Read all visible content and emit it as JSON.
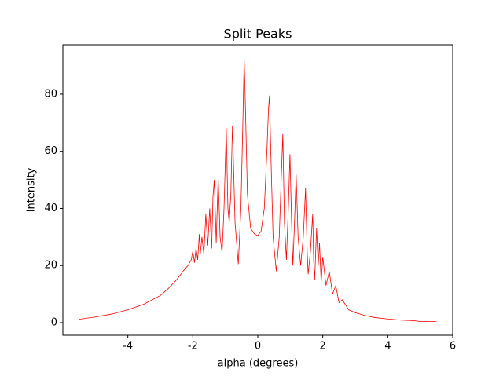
{
  "chart_data": {
    "type": "line",
    "title": "Split Peaks",
    "xlabel": "alpha (degrees)",
    "ylabel": "Intensity",
    "x": [
      -5.5,
      -5.0,
      -4.5,
      -4.0,
      -3.5,
      -3.0,
      -2.75,
      -2.5,
      -2.3,
      -2.15,
      -2.05,
      -2.0,
      -1.95,
      -1.9,
      -1.85,
      -1.8,
      -1.77,
      -1.72,
      -1.66,
      -1.6,
      -1.54,
      -1.48,
      -1.42,
      -1.38,
      -1.34,
      -1.28,
      -1.22,
      -1.16,
      -1.1,
      -1.04,
      -0.97,
      -0.92,
      -0.88,
      -0.83,
      -0.78,
      -0.7,
      -0.6,
      -0.52,
      -0.46,
      -0.42,
      -0.38,
      -0.32,
      -0.22,
      -0.1,
      0.0,
      0.1,
      0.2,
      0.28,
      0.33,
      0.36,
      0.4,
      0.47,
      0.57,
      0.66,
      0.72,
      0.77,
      0.82,
      0.88,
      0.94,
      0.99,
      1.04,
      1.08,
      1.13,
      1.18,
      1.24,
      1.32,
      1.4,
      1.47,
      1.52,
      1.55,
      1.62,
      1.69,
      1.72,
      1.75,
      1.81,
      1.86,
      1.9,
      1.95,
      2.0,
      2.1,
      2.2,
      2.3,
      2.4,
      2.5,
      2.6,
      2.8,
      3.0,
      3.3,
      3.6,
      4.0,
      4.4,
      4.8,
      5.0,
      5.5
    ],
    "series": [
      {
        "name": "Split Peaks",
        "color": "#ff0000",
        "values": [
          1.2,
          2.0,
          3.0,
          4.5,
          6.5,
          9.5,
          12,
          15,
          18,
          20,
          22,
          25,
          21,
          26,
          22,
          31,
          24,
          30,
          24,
          38,
          27,
          40,
          26,
          44,
          50,
          28,
          51,
          30,
          24.5,
          40,
          68,
          40,
          35,
          45,
          69,
          35,
          20.5,
          40,
          70,
          92.5,
          75,
          45,
          33,
          31,
          30.5,
          32,
          40,
          60,
          75,
          79.5,
          60,
          30,
          18,
          30,
          50,
          66,
          35,
          22,
          40,
          59,
          35,
          20,
          35,
          52,
          30,
          20,
          30,
          47,
          25,
          17,
          25,
          38,
          22,
          15,
          33,
          20,
          28,
          14,
          23,
          13,
          18,
          10,
          13,
          7,
          8,
          4.5,
          3.5,
          2.5,
          1.8,
          1.3,
          0.9,
          0.7,
          0.4,
          0.4
        ]
      }
    ],
    "xlim": [
      -6,
      6
    ],
    "ylim": [
      -4.4,
      97.3
    ],
    "xticks": [
      -4,
      -2,
      0,
      2,
      4,
      6
    ],
    "yticks": [
      0,
      20,
      40,
      60,
      80
    ]
  }
}
